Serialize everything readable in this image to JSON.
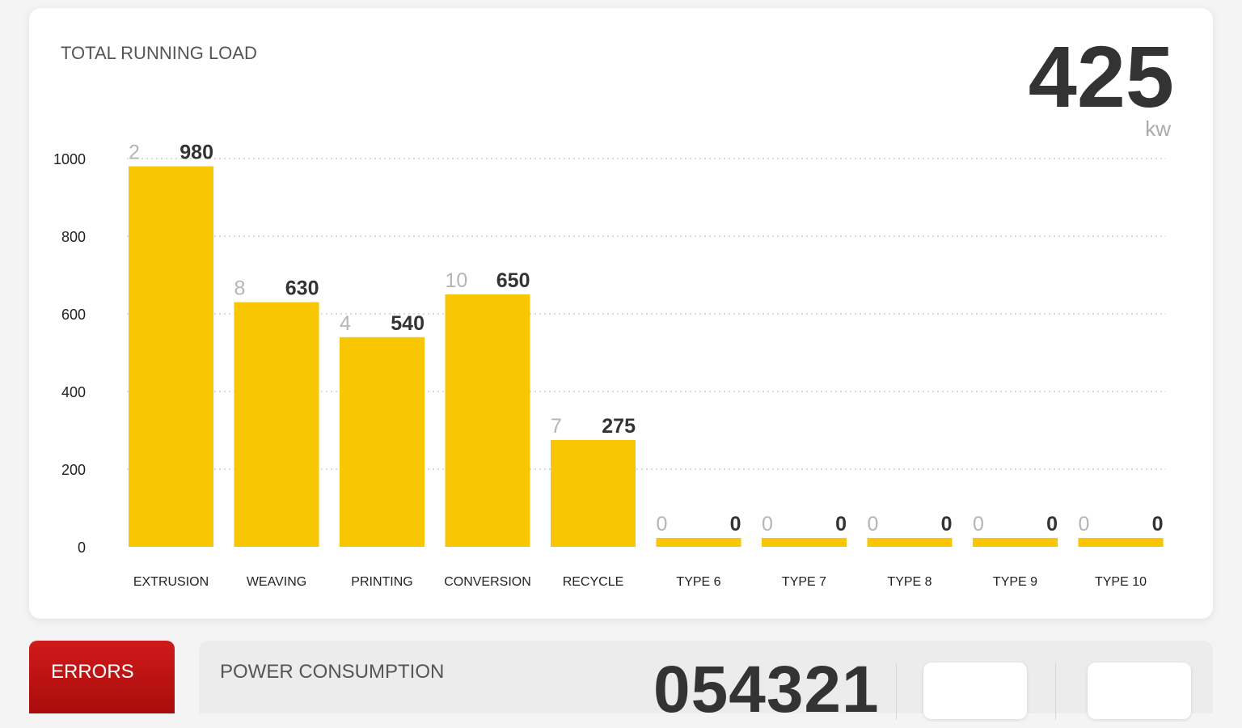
{
  "chart_data": {
    "type": "bar",
    "title": "TOTAL RUNNING LOAD",
    "categories": [
      "EXTRUSION",
      "WEAVING",
      "PRINTING",
      "CONVERSION",
      "RECYCLE",
      "TYPE 6",
      "TYPE 7",
      "TYPE 8",
      "TYPE 9",
      "TYPE 10"
    ],
    "values": [
      980,
      630,
      540,
      650,
      275,
      0,
      0,
      0,
      0,
      0
    ],
    "counts": [
      2,
      8,
      4,
      10,
      7,
      0,
      0,
      0,
      0,
      0
    ],
    "color": "#f8c602",
    "ylim": [
      0,
      1000
    ],
    "yticks": [
      0,
      200,
      400,
      600,
      800,
      1000
    ],
    "grid": true
  },
  "total_load": {
    "value": 425,
    "unit": "kw"
  },
  "errors_button": "ERRORS",
  "power_consumption": {
    "title": "POWER CONSUMPTION",
    "value": "054321"
  }
}
